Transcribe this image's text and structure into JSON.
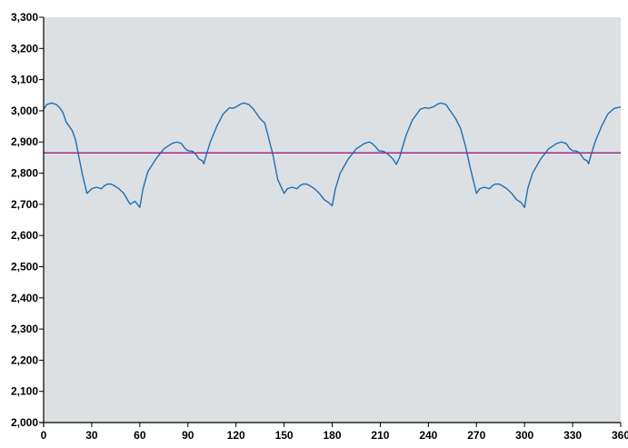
{
  "chart_data": {
    "type": "line",
    "title": "",
    "xlabel": "",
    "ylabel": "",
    "xlim": [
      0,
      360
    ],
    "ylim": [
      2000,
      3300
    ],
    "grid": false,
    "legend": "none",
    "x_ticks": [
      0,
      30,
      60,
      90,
      120,
      150,
      180,
      210,
      240,
      270,
      300,
      330,
      360
    ],
    "x_tick_labels": [
      "0",
      "30",
      "60",
      "90",
      "120",
      "150",
      "180",
      "210",
      "240",
      "270",
      "300",
      "330",
      "360"
    ],
    "y_ticks": [
      2000,
      2100,
      2200,
      2300,
      2400,
      2500,
      2600,
      2700,
      2800,
      2900,
      3000,
      3100,
      3200,
      3300
    ],
    "y_tick_labels": [
      "2,000",
      "2,100",
      "2,200",
      "2,300",
      "2,400",
      "2,500",
      "2,600",
      "2,700",
      "2,800",
      "2,900",
      "3,000",
      "3,100",
      "3,200",
      "3,300"
    ],
    "series": [
      {
        "color": "#1f6fb4",
        "x": [
          0,
          2,
          5,
          8,
          10,
          12,
          14,
          16,
          18,
          20,
          24,
          27,
          30,
          33,
          36,
          38,
          40,
          42,
          44,
          47,
          50,
          54,
          57,
          60,
          62,
          65,
          70,
          75,
          80,
          83,
          86,
          88,
          90,
          93,
          95,
          97,
          99,
          100,
          101,
          104,
          108,
          112,
          116,
          118,
          120,
          123,
          125,
          128,
          131,
          133,
          135,
          138,
          140,
          143,
          146,
          150,
          152,
          155,
          158,
          160,
          162,
          164,
          166,
          169,
          172,
          175,
          178,
          180,
          182,
          185,
          190,
          195,
          200,
          203,
          205,
          207,
          209,
          212,
          215,
          218,
          220,
          222,
          226,
          230,
          235,
          238,
          240,
          243,
          246,
          248,
          251,
          253,
          255,
          257,
          260,
          263,
          266,
          270,
          272,
          275,
          278,
          280,
          282,
          284,
          286,
          289,
          292,
          295,
          298,
          300,
          302,
          305,
          310,
          315,
          320,
          323,
          326,
          328,
          330,
          333,
          335,
          337,
          339,
          340,
          341,
          344,
          348,
          352,
          356,
          358,
          360
        ],
        "y": [
          3005,
          3020,
          3025,
          3020,
          3010,
          2995,
          2965,
          2950,
          2935,
          2905,
          2800,
          2735,
          2750,
          2755,
          2750,
          2760,
          2765,
          2765,
          2760,
          2750,
          2735,
          2700,
          2710,
          2690,
          2750,
          2805,
          2845,
          2878,
          2895,
          2900,
          2895,
          2880,
          2872,
          2870,
          2860,
          2845,
          2840,
          2830,
          2850,
          2900,
          2950,
          2990,
          3010,
          3008,
          3012,
          3022,
          3025,
          3020,
          3005,
          2990,
          2975,
          2960,
          2920,
          2860,
          2780,
          2735,
          2750,
          2755,
          2750,
          2760,
          2765,
          2765,
          2760,
          2750,
          2735,
          2715,
          2705,
          2695,
          2750,
          2800,
          2845,
          2878,
          2895,
          2900,
          2895,
          2885,
          2872,
          2870,
          2860,
          2845,
          2828,
          2850,
          2920,
          2970,
          3005,
          3010,
          3008,
          3012,
          3022,
          3025,
          3020,
          3005,
          2990,
          2975,
          2945,
          2890,
          2820,
          2735,
          2750,
          2755,
          2750,
          2760,
          2765,
          2765,
          2760,
          2750,
          2735,
          2715,
          2705,
          2690,
          2750,
          2800,
          2845,
          2878,
          2895,
          2900,
          2895,
          2880,
          2872,
          2870,
          2860,
          2845,
          2840,
          2830,
          2850,
          2900,
          2950,
          2990,
          3008,
          3010,
          3012
        ]
      },
      {
        "color": "#9b2c8f",
        "x": [
          0,
          360
        ],
        "y": [
          2865,
          2865
        ]
      }
    ]
  },
  "colors": {
    "plot_background": "#dce0e3",
    "axis": "#000000"
  }
}
